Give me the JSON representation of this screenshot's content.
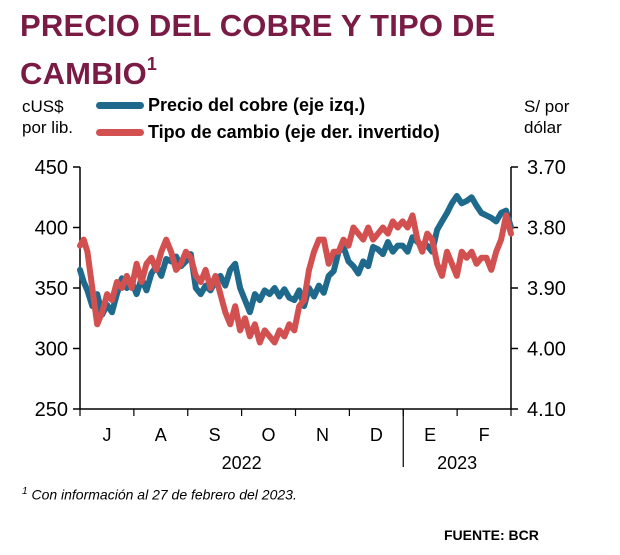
{
  "title": {
    "text": "PRECIO DEL COBRE Y TIPO DE CAMBIO",
    "superscript": "1"
  },
  "left_axis_label": {
    "line1": "cUS$",
    "line2": "por lib."
  },
  "right_axis_label": {
    "line1": "S/ por",
    "line2": "dólar"
  },
  "footnote": {
    "marker": "1",
    "text": " Con información al 27 de febrero del 2023."
  },
  "source": "FUENTE: BCR",
  "colors": {
    "title": "#7a1b45",
    "copper": "#1f6a8c",
    "fx": "#d2504f"
  },
  "chart_data": {
    "type": "line",
    "x_months": [
      "J",
      "A",
      "S",
      "O",
      "N",
      "D",
      "E",
      "F"
    ],
    "x_years": [
      {
        "label": "2022",
        "months": [
          "J",
          "A",
          "S",
          "O",
          "N",
          "D"
        ]
      },
      {
        "label": "2023",
        "months": [
          "E",
          "F"
        ]
      }
    ],
    "y_left": {
      "ticks": [
        250,
        300,
        350,
        400,
        450
      ],
      "lim": [
        250,
        450
      ]
    },
    "y_right": {
      "ticks": [
        "3.70",
        "3.80",
        "3.90",
        "4.00",
        "4.10"
      ],
      "lim": [
        3.7,
        4.1
      ],
      "inverted": true
    },
    "grid": false,
    "legend_position": "top",
    "series": [
      {
        "name": "Precio del cobre (eje izq.)",
        "axis": "left",
        "color": "#1f6a8c",
        "x": [
          0,
          0.3,
          0.6,
          1,
          1.4,
          1.8,
          2.2,
          2.6,
          3,
          3.4,
          3.8,
          4.2,
          4.6,
          5,
          5.4,
          5.8,
          6.2,
          6.6,
          7,
          7.4,
          7.8,
          8.2,
          8.6,
          9,
          9.4,
          9.8,
          10.2,
          10.6,
          11,
          11.4,
          11.8,
          12.2,
          12.6,
          13,
          13.4,
          13.8,
          14.2,
          14.6,
          15,
          15.4,
          15.8,
          16.2,
          16.6,
          17,
          17.4,
          17.8,
          18.2,
          18.6,
          19,
          19.4,
          19.8,
          20.2,
          20.6,
          21,
          21.4,
          21.8,
          22.2,
          22.6,
          23,
          23.4,
          23.8,
          24.2,
          24.6,
          25,
          25.4,
          25.8,
          26.2,
          26.6,
          27,
          27.4,
          27.8,
          28.2,
          28.6,
          29,
          29.4,
          29.8,
          30.2,
          30.6,
          31,
          31.4,
          31.8,
          32.2,
          32.6,
          33,
          33.4,
          33.8,
          34.2,
          34.6,
          35
        ],
        "y": [
          365,
          355,
          348,
          335,
          345,
          328,
          336,
          330,
          345,
          358,
          350,
          355,
          345,
          358,
          348,
          362,
          368,
          360,
          374,
          372,
          376,
          368,
          372,
          378,
          350,
          345,
          352,
          348,
          356,
          360,
          352,
          365,
          370,
          350,
          340,
          330,
          345,
          340,
          348,
          345,
          350,
          343,
          349,
          342,
          340,
          348,
          335,
          350,
          343,
          352,
          346,
          360,
          364,
          380,
          384,
          372,
          368,
          362,
          372,
          368,
          384,
          382,
          378,
          388,
          380,
          385,
          385,
          380,
          392,
          388,
          385,
          385,
          380,
          398,
          405,
          412,
          420,
          426,
          420,
          422,
          425,
          418,
          412,
          410,
          408,
          405,
          412,
          414,
          400
        ],
        "y_lim": [
          250,
          450
        ]
      },
      {
        "name": "Tipo de cambio (eje der. invertido)",
        "axis": "right",
        "color": "#d2504f",
        "x": [
          0,
          0.3,
          0.6,
          1,
          1.4,
          1.8,
          2.2,
          2.6,
          3,
          3.4,
          3.8,
          4.2,
          4.6,
          5,
          5.4,
          5.8,
          6.2,
          6.6,
          7,
          7.4,
          7.8,
          8.2,
          8.6,
          9,
          9.4,
          9.8,
          10.2,
          10.6,
          11,
          11.4,
          11.8,
          12.2,
          12.6,
          13,
          13.4,
          13.8,
          14.2,
          14.6,
          15,
          15.4,
          15.8,
          16.2,
          16.6,
          17,
          17.4,
          17.8,
          18.2,
          18.6,
          19,
          19.4,
          19.8,
          20.2,
          20.6,
          21,
          21.4,
          21.8,
          22.2,
          22.6,
          23,
          23.4,
          23.8,
          24.2,
          24.6,
          25,
          25.4,
          25.8,
          26.2,
          26.6,
          27,
          27.4,
          27.8,
          28.2,
          28.6,
          29,
          29.4,
          29.8,
          30.2,
          30.6,
          31,
          31.4,
          31.8,
          32.2,
          32.6,
          33,
          33.4,
          33.8,
          34.2,
          34.6,
          35
        ],
        "y": [
          3.83,
          3.82,
          3.84,
          3.9,
          3.96,
          3.94,
          3.91,
          3.92,
          3.89,
          3.9,
          3.88,
          3.9,
          3.86,
          3.89,
          3.86,
          3.85,
          3.87,
          3.84,
          3.82,
          3.84,
          3.87,
          3.86,
          3.84,
          3.85,
          3.88,
          3.89,
          3.87,
          3.9,
          3.88,
          3.91,
          3.94,
          3.96,
          3.93,
          3.97,
          3.95,
          3.98,
          3.96,
          3.99,
          3.97,
          3.98,
          3.99,
          3.97,
          3.98,
          3.96,
          3.97,
          3.93,
          3.92,
          3.87,
          3.84,
          3.82,
          3.82,
          3.86,
          3.84,
          3.84,
          3.82,
          3.83,
          3.8,
          3.81,
          3.82,
          3.8,
          3.82,
          3.81,
          3.8,
          3.81,
          3.79,
          3.8,
          3.79,
          3.8,
          3.78,
          3.82,
          3.84,
          3.81,
          3.82,
          3.86,
          3.88,
          3.84,
          3.86,
          3.88,
          3.84,
          3.85,
          3.84,
          3.86,
          3.85,
          3.85,
          3.87,
          3.84,
          3.82,
          3.78,
          3.81
        ],
        "y_lim": [
          3.7,
          4.1
        ]
      }
    ]
  }
}
